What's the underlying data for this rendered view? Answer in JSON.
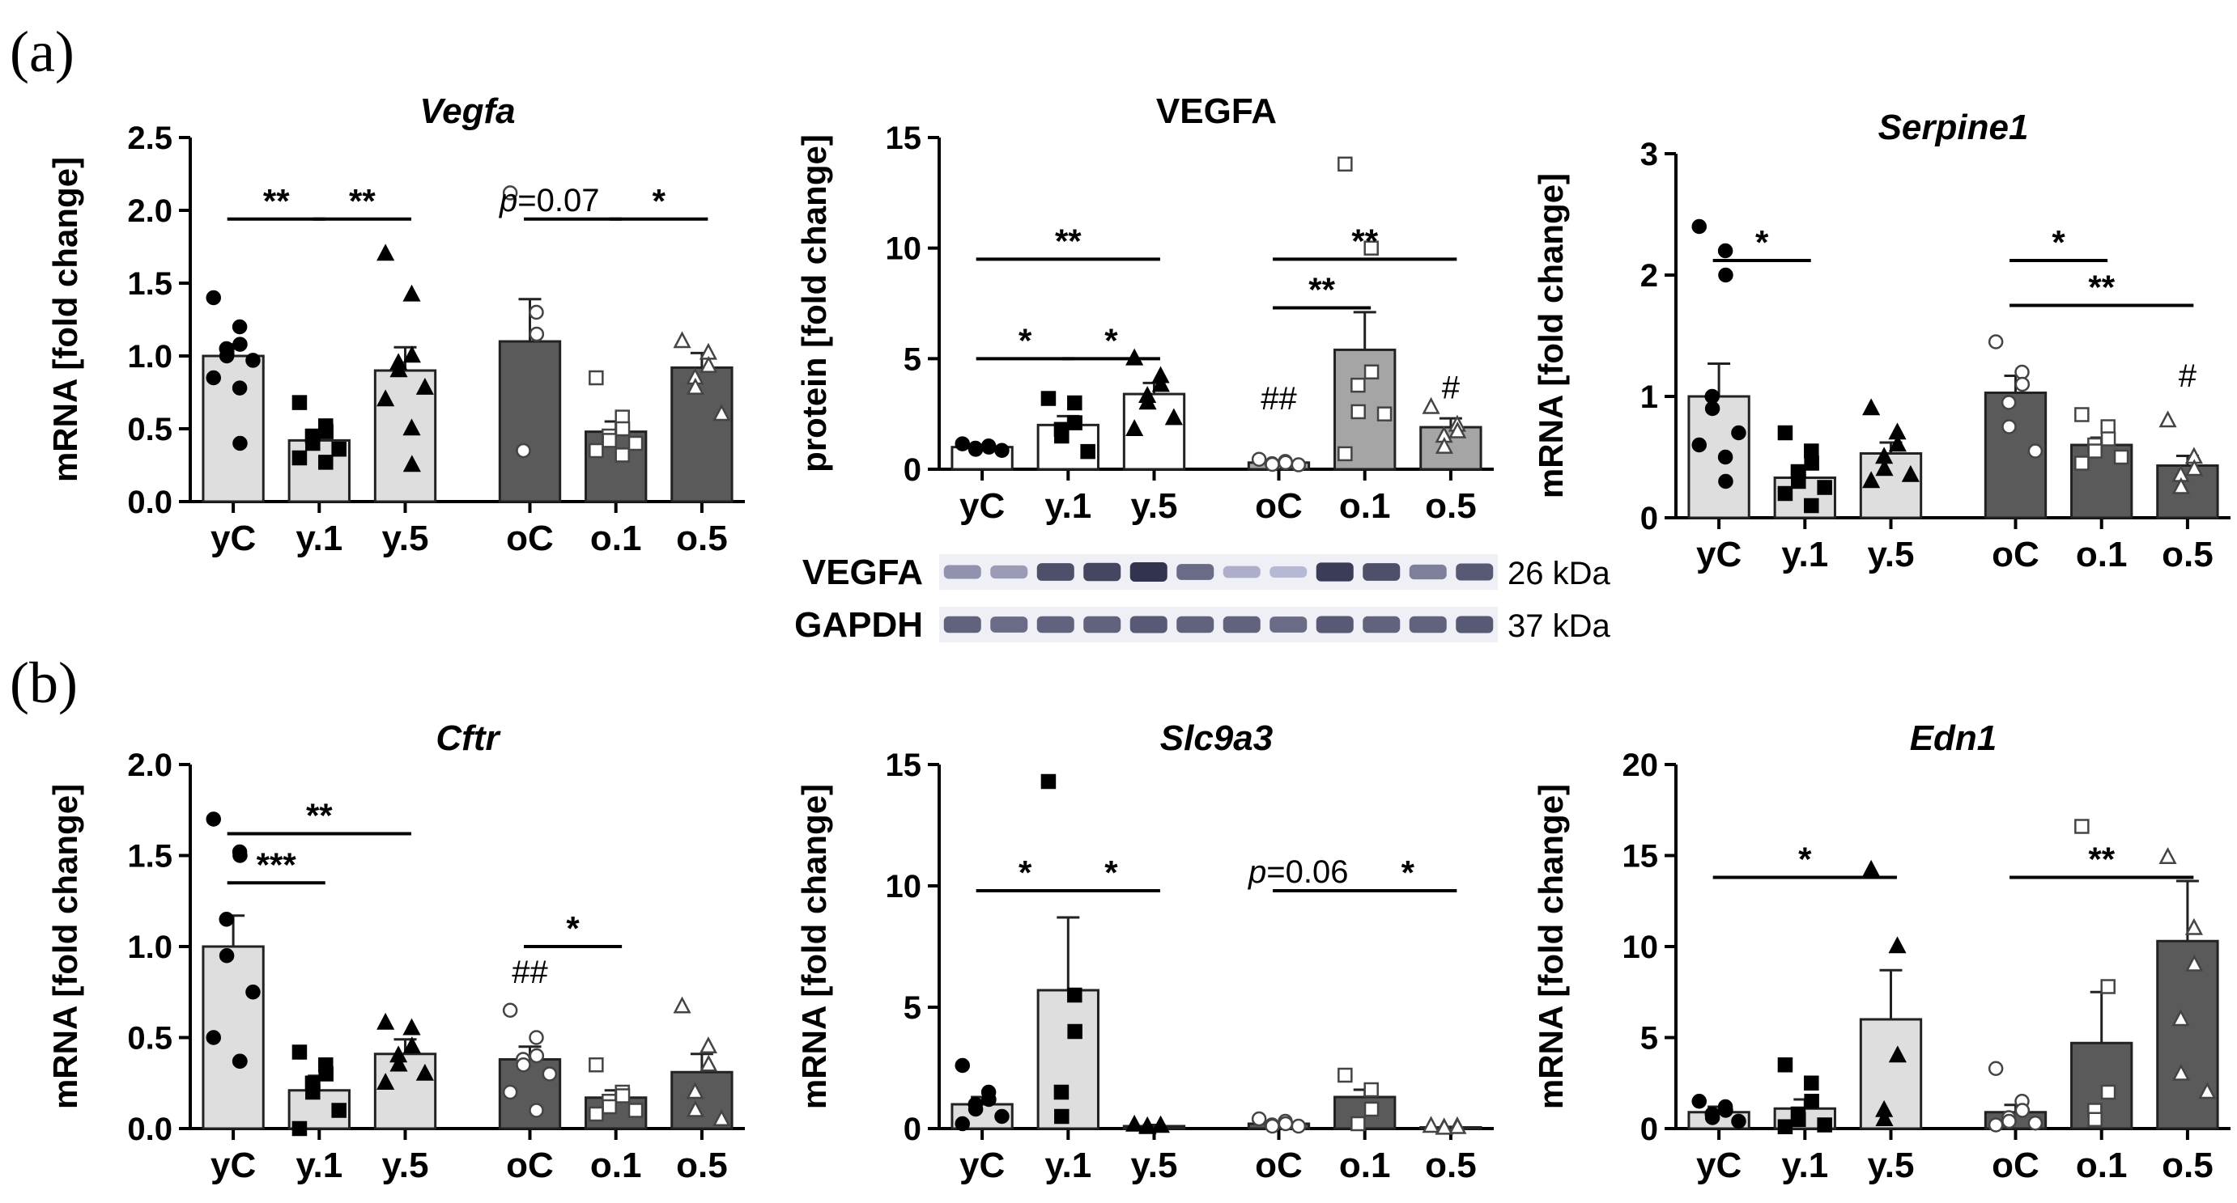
{
  "figure": {
    "panel_a": "(a)",
    "panel_b": "(b)"
  },
  "western_blot": {
    "rows": [
      {
        "label": "VEGFA",
        "size": "26 kDa",
        "intensities": [
          0.35,
          0.3,
          0.7,
          0.75,
          0.85,
          0.55,
          0.2,
          0.15,
          0.8,
          0.7,
          0.45,
          0.65
        ]
      },
      {
        "label": "GAPDH",
        "size": "37 kDa",
        "intensities": [
          0.6,
          0.55,
          0.6,
          0.6,
          0.65,
          0.6,
          0.6,
          0.55,
          0.65,
          0.6,
          0.6,
          0.65
        ]
      }
    ]
  },
  "chart_data": [
    {
      "type": "bar",
      "title": "Vegfa",
      "title_italic": true,
      "ylabel": "mRNA [fold change]",
      "ylim": [
        0,
        2.5
      ],
      "yticks": [
        "0.0",
        "0.5",
        "1.0",
        "1.5",
        "2.0",
        "2.5"
      ],
      "categories": [
        "yC",
        "y.1",
        "y.5",
        "oC",
        "o.1",
        "o.5"
      ],
      "values": [
        1.0,
        0.42,
        0.9,
        1.1,
        0.48,
        0.92
      ],
      "errors": [
        0.08,
        0.06,
        0.16,
        0.29,
        0.07,
        0.1
      ],
      "points": [
        [
          1.4,
          1.2,
          1.08,
          1.05,
          1.0,
          0.97,
          0.85,
          0.78,
          0.4
        ],
        [
          0.68,
          0.52,
          0.48,
          0.45,
          0.4,
          0.36,
          0.3,
          0.27
        ],
        [
          1.7,
          1.42,
          1.0,
          0.95,
          0.9,
          0.78,
          0.7,
          0.5,
          0.25
        ],
        [
          2.12,
          1.3,
          1.15,
          0.35,
          0.35
        ],
        [
          0.85,
          0.58,
          0.5,
          0.45,
          0.42,
          0.4,
          0.35,
          0.32
        ],
        [
          1.1,
          1.02,
          0.93,
          0.85,
          0.78,
          0.6
        ]
      ],
      "annotations": [
        {
          "from": 0,
          "to": 1,
          "y": 1.94,
          "text": "**"
        },
        {
          "from": 1,
          "to": 2,
          "y": 1.94,
          "text": "**"
        },
        {
          "from": 3,
          "to": 4,
          "y": 1.94,
          "text": "p=0.07"
        },
        {
          "from": 4,
          "to": 5,
          "y": 1.94,
          "text": "*"
        }
      ],
      "above_labels": []
    },
    {
      "type": "bar",
      "title": "VEGFA",
      "title_italic": false,
      "ylabel": "protein [fold change]",
      "ylim": [
        0,
        15
      ],
      "yticks": [
        "0",
        "5",
        "10",
        "15"
      ],
      "categories": [
        "yC",
        "y.1",
        "y.5",
        "oC",
        "o.1",
        "o.5"
      ],
      "values": [
        1.0,
        2.0,
        3.4,
        0.3,
        5.4,
        1.9
      ],
      "errors": [
        0.1,
        0.4,
        0.5,
        0.1,
        1.7,
        0.4
      ],
      "points": [
        [
          1.15,
          1.05,
          1.0,
          0.95,
          0.9,
          0.85
        ],
        [
          3.2,
          3.0,
          2.1,
          1.8,
          1.5,
          0.8
        ],
        [
          5.0,
          4.2,
          3.8,
          3.3,
          3.0,
          2.3,
          1.8
        ],
        [
          0.45,
          0.35,
          0.3,
          0.25,
          0.22,
          0.2
        ],
        [
          13.8,
          10.0,
          4.4,
          3.8,
          2.6,
          2.5,
          0.7
        ],
        [
          2.8,
          2.0,
          1.7,
          1.5,
          1.0
        ]
      ],
      "annotations": [
        {
          "from": 0,
          "to": 2,
          "y": 9.5,
          "text": "**"
        },
        {
          "from": 0,
          "to": 1,
          "y": 5.0,
          "text": "*"
        },
        {
          "from": 1,
          "to": 2,
          "y": 5.0,
          "text": "*"
        },
        {
          "from": 3,
          "to": 5,
          "y": 9.5,
          "text": "**"
        },
        {
          "from": 3,
          "to": 4,
          "y": 7.3,
          "text": "**"
        }
      ],
      "above_labels": [
        {
          "index": 3,
          "value": 2.7,
          "text": "##"
        },
        {
          "index": 5,
          "value": 3.2,
          "text": "#"
        }
      ]
    },
    {
      "type": "bar",
      "title": "Serpine1",
      "title_italic": true,
      "ylabel": "mRNA [fold change]",
      "ylim": [
        0,
        3
      ],
      "yticks": [
        "0",
        "1",
        "2",
        "3"
      ],
      "categories": [
        "yC",
        "y.1",
        "y.5",
        "oC",
        "o.1",
        "o.5"
      ],
      "values": [
        1.0,
        0.33,
        0.53,
        1.03,
        0.6,
        0.43
      ],
      "errors": [
        0.27,
        0.1,
        0.09,
        0.14,
        0.06,
        0.08
      ],
      "points": [
        [
          2.4,
          2.2,
          2.0,
          1.0,
          0.9,
          0.7,
          0.6,
          0.5,
          0.3
        ],
        [
          0.7,
          0.55,
          0.45,
          0.38,
          0.3,
          0.25,
          0.2,
          0.1
        ],
        [
          0.9,
          0.7,
          0.6,
          0.5,
          0.4,
          0.35,
          0.3
        ],
        [
          1.45,
          1.2,
          1.1,
          0.95,
          0.75,
          0.55
        ],
        [
          0.85,
          0.75,
          0.65,
          0.6,
          0.55,
          0.5,
          0.45
        ],
        [
          0.8,
          0.5,
          0.4,
          0.35,
          0.25
        ]
      ],
      "annotations": [
        {
          "from": 0,
          "to": 1,
          "y": 2.12,
          "text": "*"
        },
        {
          "from": 3,
          "to": 4,
          "y": 2.12,
          "text": "*"
        },
        {
          "from": 3,
          "to": 5,
          "y": 1.75,
          "text": "**"
        }
      ],
      "above_labels": [
        {
          "index": 5,
          "value": 1.08,
          "text": "#"
        }
      ]
    },
    {
      "type": "bar",
      "title": "Cftr",
      "title_italic": true,
      "ylabel": "mRNA [fold change]",
      "ylim": [
        0,
        2.0
      ],
      "yticks": [
        "0.0",
        "0.5",
        "1.0",
        "1.5",
        "2.0"
      ],
      "categories": [
        "yC",
        "y.1",
        "y.5",
        "oC",
        "o.1",
        "o.5"
      ],
      "values": [
        1.0,
        0.21,
        0.41,
        0.38,
        0.17,
        0.31
      ],
      "errors": [
        0.17,
        0.08,
        0.08,
        0.07,
        0.04,
        0.1
      ],
      "points": [
        [
          1.7,
          1.52,
          1.5,
          1.15,
          0.95,
          0.75,
          0.5,
          0.37,
          0.37
        ],
        [
          0.42,
          0.35,
          0.3,
          0.25,
          0.2,
          0.1,
          0.0
        ],
        [
          0.58,
          0.55,
          0.45,
          0.4,
          0.35,
          0.3,
          0.25
        ],
        [
          0.65,
          0.5,
          0.4,
          0.38,
          0.35,
          0.3,
          0.2,
          0.1
        ],
        [
          0.35,
          0.2,
          0.18,
          0.15,
          0.12,
          0.1,
          0.08
        ],
        [
          0.67,
          0.45,
          0.35,
          0.2,
          0.1,
          0.05
        ]
      ],
      "annotations": [
        {
          "from": 0,
          "to": 2,
          "y": 1.62,
          "text": "**"
        },
        {
          "from": 0,
          "to": 1,
          "y": 1.35,
          "text": "***"
        },
        {
          "from": 3,
          "to": 4,
          "y": 1.0,
          "text": "*"
        }
      ],
      "above_labels": [
        {
          "index": 3,
          "value": 0.8,
          "text": "##"
        }
      ]
    },
    {
      "type": "bar",
      "title": "Slc9a3",
      "title_italic": true,
      "ylabel": "mRNA [fold change]",
      "ylim": [
        0,
        15
      ],
      "yticks": [
        "0",
        "5",
        "10",
        "15"
      ],
      "categories": [
        "yC",
        "y.1",
        "y.5",
        "oC",
        "o.1",
        "o.5"
      ],
      "values": [
        1.0,
        5.7,
        0.1,
        0.2,
        1.3,
        0.05
      ],
      "errors": [
        0.3,
        3.0,
        0.05,
        0.05,
        0.3,
        0.02
      ],
      "points": [
        [
          2.6,
          1.5,
          1.2,
          1.0,
          0.8,
          0.5,
          0.2
        ],
        [
          14.3,
          5.5,
          4.0,
          1.5,
          0.5
        ],
        [
          0.15,
          0.12,
          0.1,
          0.08,
          0.05
        ],
        [
          0.4,
          0.3,
          0.2,
          0.15,
          0.1,
          0.1
        ],
        [
          2.2,
          1.6,
          0.8,
          0.2
        ],
        [
          0.1,
          0.08,
          0.05,
          0.03,
          0.02
        ]
      ],
      "annotations": [
        {
          "from": 0,
          "to": 1,
          "y": 9.8,
          "text": "*"
        },
        {
          "from": 1,
          "to": 2,
          "y": 9.8,
          "text": "*"
        },
        {
          "from": 3,
          "to": 4,
          "y": 9.8,
          "text": "p=0.06"
        },
        {
          "from": 4,
          "to": 5,
          "y": 9.8,
          "text": "*"
        }
      ],
      "above_labels": []
    },
    {
      "type": "bar",
      "title": "Edn1",
      "title_italic": true,
      "ylabel": "mRNA [fold change]",
      "ylim": [
        0,
        20
      ],
      "yticks": [
        "0",
        "5",
        "10",
        "15",
        "20"
      ],
      "categories": [
        "yC",
        "y.1",
        "y.5",
        "oC",
        "o.1",
        "o.5"
      ],
      "values": [
        0.9,
        1.1,
        6.0,
        0.9,
        4.7,
        10.3
      ],
      "errors": [
        0.3,
        0.5,
        2.7,
        0.4,
        2.8,
        3.3
      ],
      "points": [
        [
          1.5,
          1.2,
          1.0,
          0.8,
          0.6,
          0.4
        ],
        [
          3.5,
          2.5,
          1.5,
          0.8,
          0.5,
          0.2,
          0.1
        ],
        [
          14.2,
          10.0,
          4.0,
          1.0,
          0.5
        ],
        [
          3.3,
          1.5,
          1.0,
          0.6,
          0.4,
          0.3,
          0.2
        ],
        [
          16.6,
          7.8,
          2.0,
          1.0,
          0.5
        ],
        [
          14.9,
          11.0,
          9.0,
          6.0,
          3.0,
          2.0
        ]
      ],
      "annotations": [
        {
          "from": 0,
          "to": 2,
          "y": 13.8,
          "text": "*"
        },
        {
          "from": 3,
          "to": 5,
          "y": 13.8,
          "text": "**"
        }
      ],
      "above_labels": []
    }
  ]
}
